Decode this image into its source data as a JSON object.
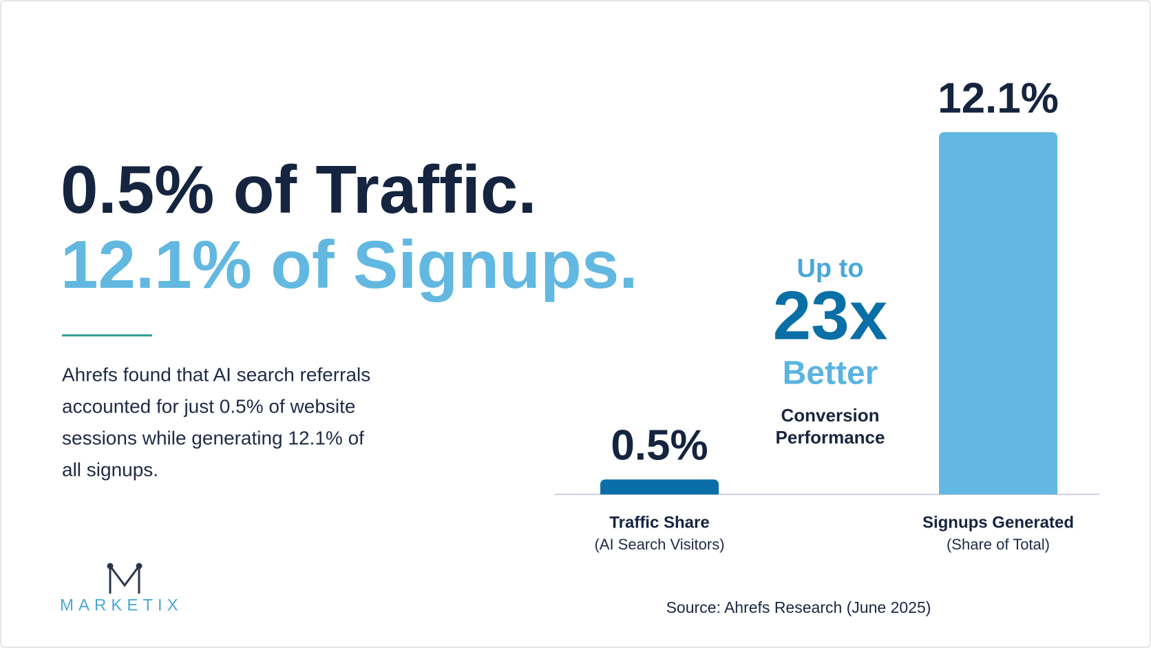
{
  "headline": {
    "line1": "0.5% of Traffic.",
    "line2": "12.1% of Signups."
  },
  "body_lines": [
    "Ahrefs found that AI search referrals",
    "accounted for just 0.5% of website",
    "sessions while generating 12.1% of",
    "all signups."
  ],
  "logo": "MARKETIX",
  "source": "Source: Ahrefs Research (June 2025)",
  "chart_data": {
    "type": "bar",
    "categories": [
      "Traffic Share",
      "Signups Generated"
    ],
    "category_subtitles": [
      "(AI Search Visitors)",
      "(Share of Total)"
    ],
    "values": [
      0.5,
      12.1
    ],
    "value_labels": [
      "0.5%",
      "12.1%"
    ],
    "colors": [
      "#0a6fa6",
      "#62b8e0"
    ],
    "annotation": {
      "top": "Up to",
      "big": "23x",
      "middle": "Better",
      "lines": [
        "Conversion",
        "Performance"
      ]
    }
  }
}
